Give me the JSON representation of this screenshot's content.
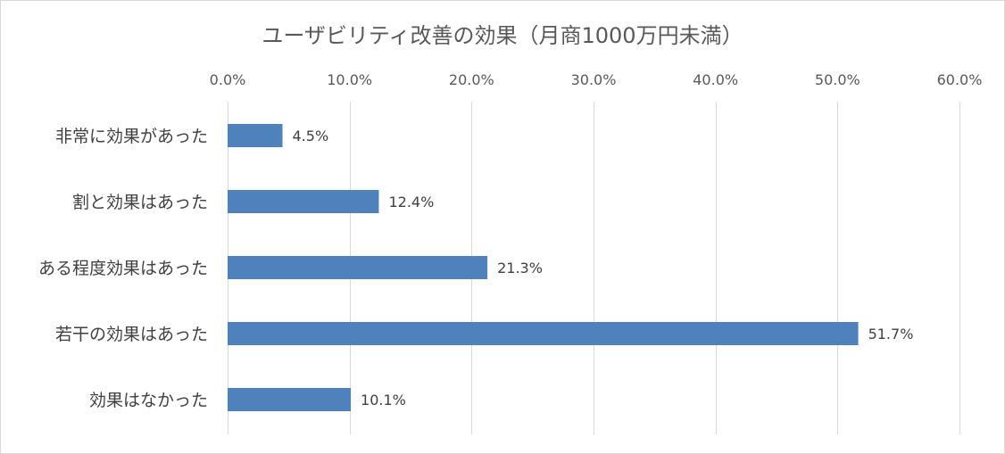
{
  "chart_data": {
    "type": "bar",
    "orientation": "horizontal",
    "title": "ユーザビリティ改善の効果（月商1000万円未満）",
    "categories": [
      "非常に効果があった",
      "割と効果はあった",
      "ある程度効果はあった",
      "若干の効果はあった",
      "効果はなかった"
    ],
    "values": [
      4.5,
      12.4,
      21.3,
      51.7,
      10.1
    ],
    "data_labels": [
      "4.5%",
      "12.4%",
      "21.3%",
      "51.7%",
      "10.1%"
    ],
    "xlim": [
      0,
      60
    ],
    "xticks": [
      0,
      10,
      20,
      30,
      40,
      50,
      60
    ],
    "xtick_labels": [
      "0.0%",
      "10.0%",
      "20.0%",
      "30.0%",
      "40.0%",
      "50.0%",
      "60.0%"
    ],
    "xaxis_position": "top",
    "grid": true,
    "bar_color": "#4f81bd",
    "legend": "none"
  }
}
